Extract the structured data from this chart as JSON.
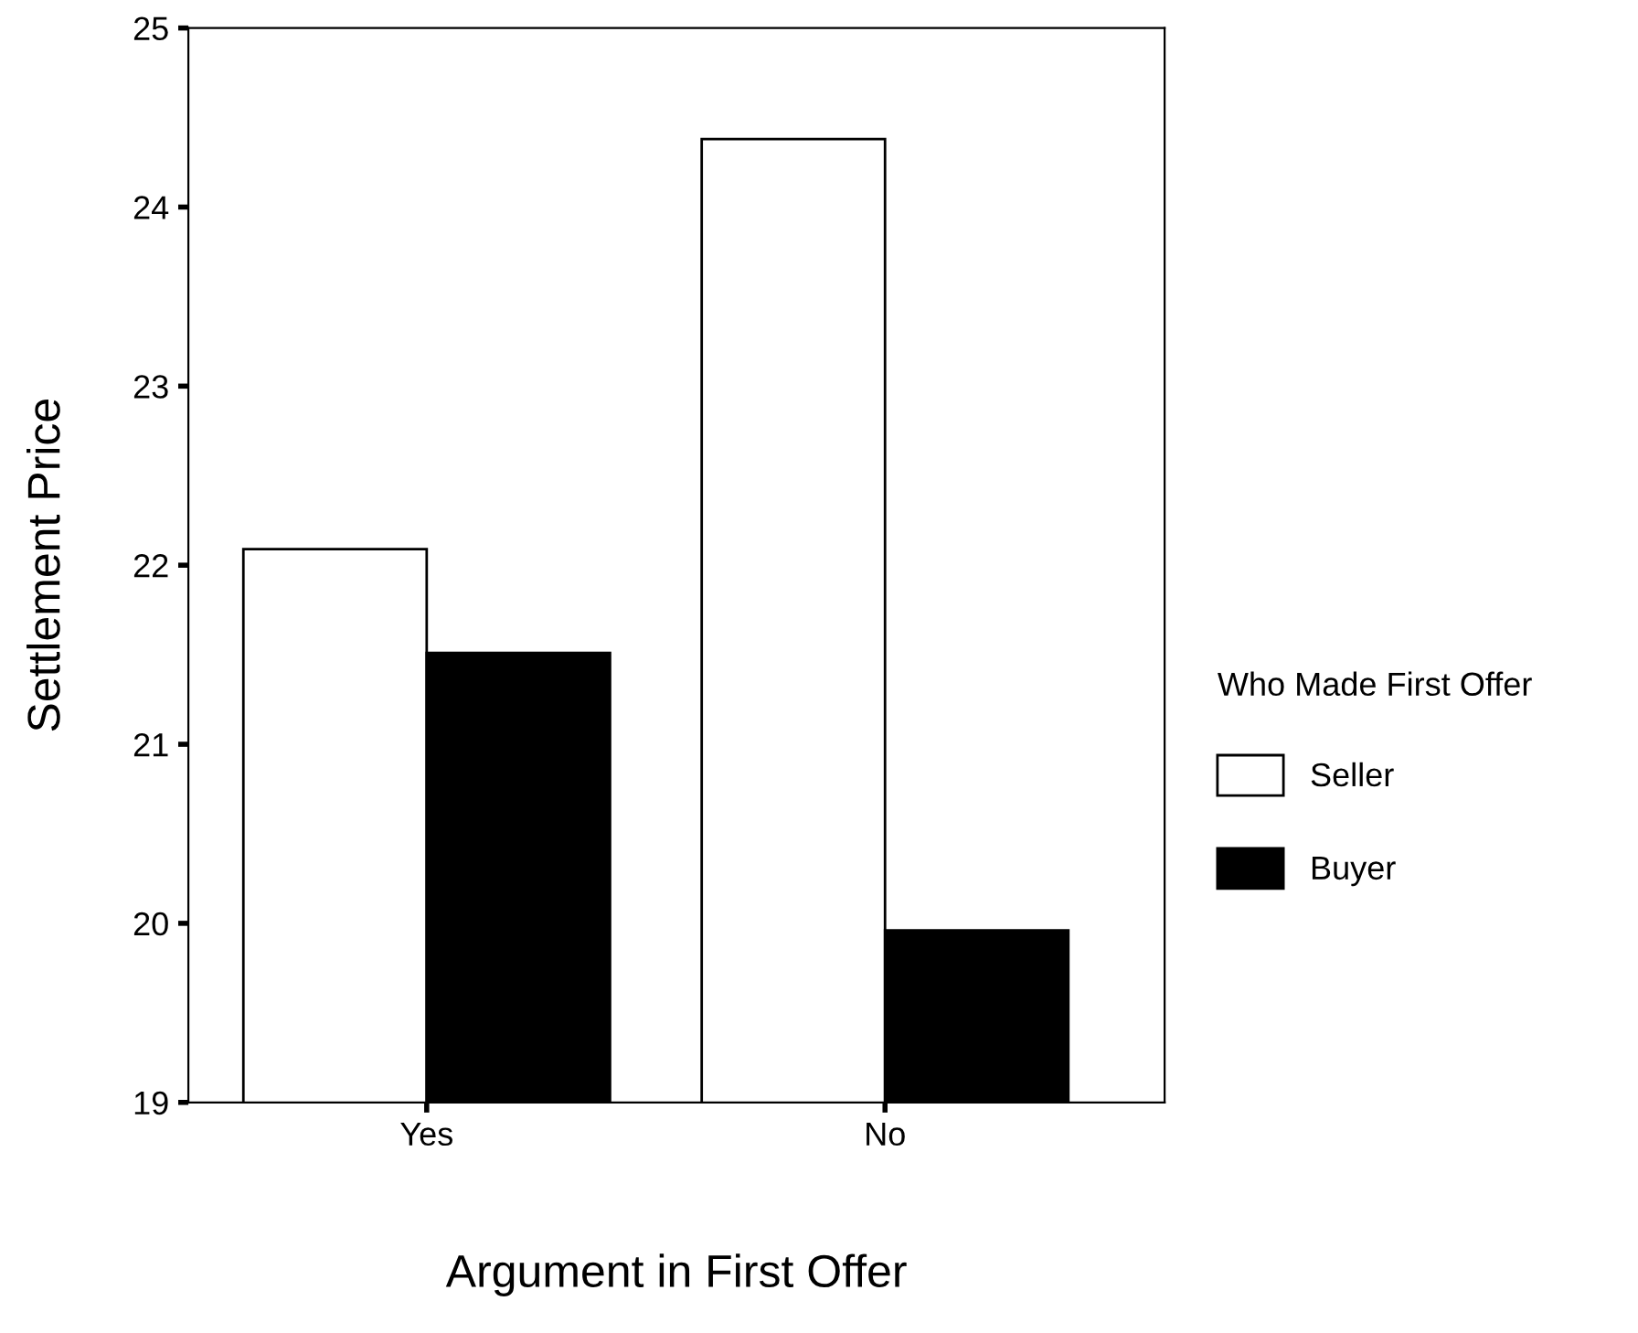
{
  "chart_data": {
    "type": "bar",
    "xlabel": "Argument in First Offer",
    "ylabel": "Settlement Price",
    "legend_title": "Who Made First Offer",
    "categories": [
      "Yes",
      "No"
    ],
    "series": [
      {
        "name": "Seller",
        "color": "#ffffff",
        "values": [
          22.09,
          24.38
        ]
      },
      {
        "name": "Buyer",
        "color": "#000000",
        "values": [
          21.51,
          19.96
        ]
      }
    ],
    "ylim": [
      19,
      25
    ],
    "yticks": [
      19,
      20,
      21,
      22,
      23,
      24,
      25
    ],
    "grid": false,
    "legend": "right"
  }
}
